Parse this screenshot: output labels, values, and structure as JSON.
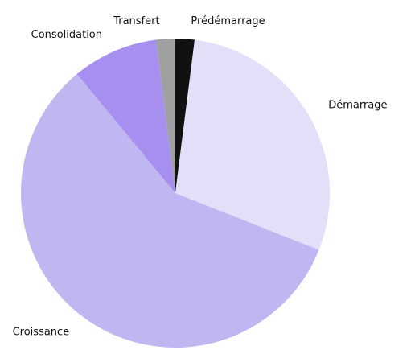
{
  "chart_data": {
    "type": "pie",
    "categories": [
      "Prédémarrage",
      "Démarrage",
      "Croissance",
      "Consolidation",
      "Transfert"
    ],
    "values": [
      2,
      29,
      58,
      9,
      2
    ],
    "colors": [
      "#111111",
      "#e2dff8",
      "#c0b6f2",
      "#a78ff0",
      "#a0a0a0"
    ]
  }
}
